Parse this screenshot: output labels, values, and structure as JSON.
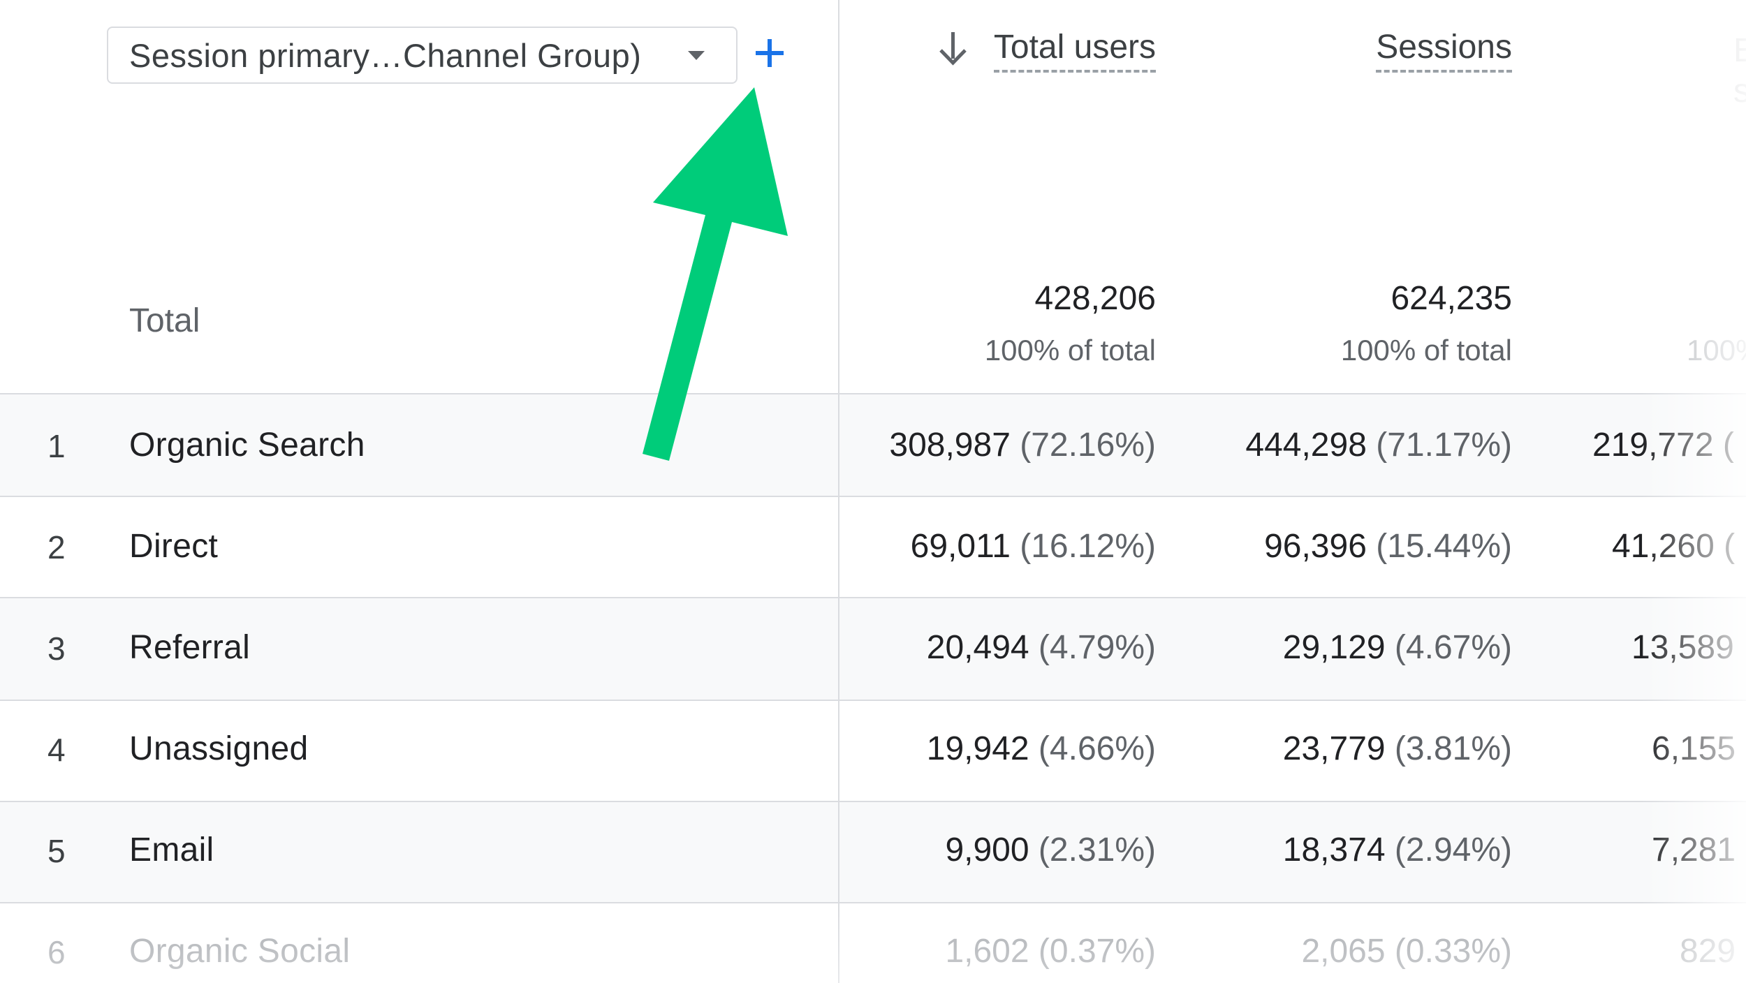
{
  "dimension_selector": {
    "label": "Session primary…Channel Group)",
    "caret_icon": "dropdown-caret-icon",
    "add_icon": "plus-icon",
    "add_color": "#1a73e8"
  },
  "columns": {
    "total_users": "Total users",
    "sessions": "Sessions",
    "third_partial": "E\ns",
    "sort_icon": "arrow-down-icon"
  },
  "totals": {
    "label": "Total",
    "total_users": "428,206",
    "total_users_pct": "100% of total",
    "sessions": "624,235",
    "sessions_pct": "100% of total",
    "third_pct_partial": "100%"
  },
  "rows": [
    {
      "num": "1",
      "name": "Organic Search",
      "users": "308,987",
      "users_pct": "(72.16%)",
      "sessions": "444,298",
      "sessions_pct": "(71.17%)",
      "third": "219,772 ("
    },
    {
      "num": "2",
      "name": "Direct",
      "users": "69,011",
      "users_pct": "(16.12%)",
      "sessions": "96,396",
      "sessions_pct": "(15.44%)",
      "third": "41,260 ("
    },
    {
      "num": "3",
      "name": "Referral",
      "users": "20,494",
      "users_pct": "(4.79%)",
      "sessions": "29,129",
      "sessions_pct": "(4.67%)",
      "third": "13,589"
    },
    {
      "num": "4",
      "name": "Unassigned",
      "users": "19,942",
      "users_pct": "(4.66%)",
      "sessions": "23,779",
      "sessions_pct": "(3.81%)",
      "third": "6,155"
    },
    {
      "num": "5",
      "name": "Email",
      "users": "9,900",
      "users_pct": "(2.31%)",
      "sessions": "18,374",
      "sessions_pct": "(2.94%)",
      "third": "7,281"
    },
    {
      "num": "6",
      "name": "Organic Social",
      "users": "1,602",
      "users_pct": "(0.37%)",
      "sessions": "2,065",
      "sessions_pct": "(0.33%)",
      "third": "829"
    }
  ],
  "annotation": {
    "icon": "green-arrow-icon",
    "color": "#00cc7a"
  }
}
